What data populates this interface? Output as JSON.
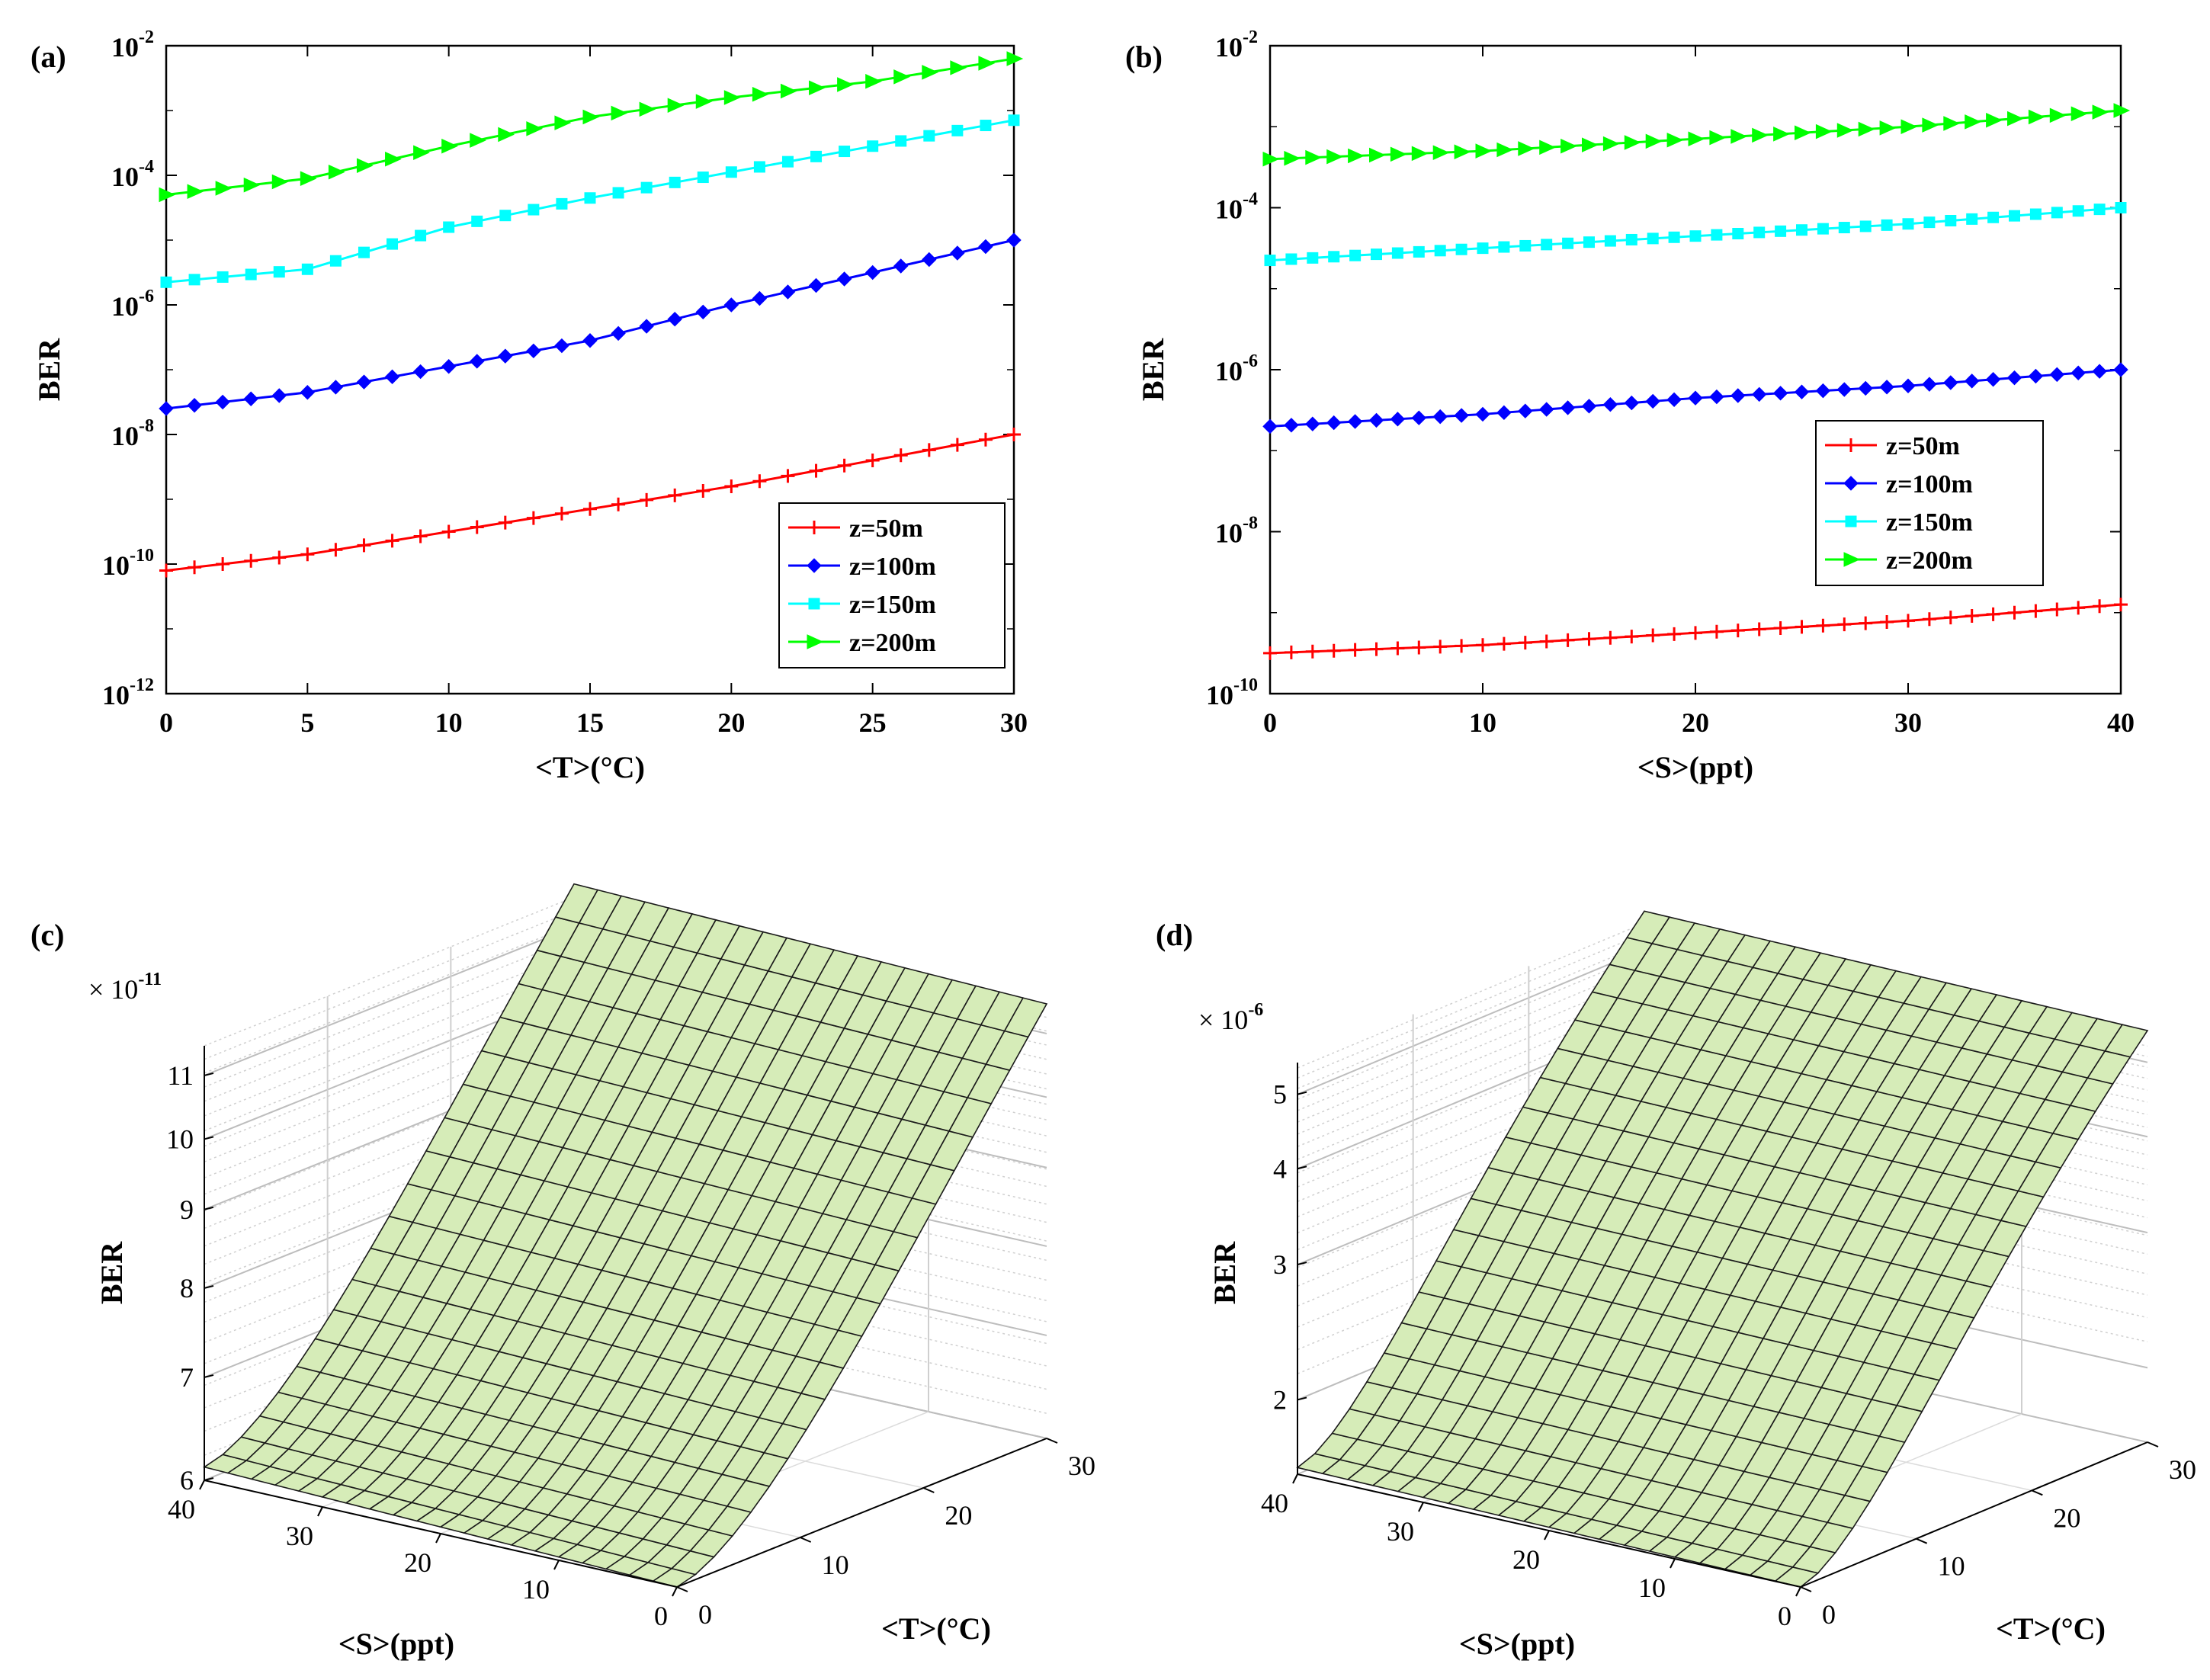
{
  "colors": {
    "z50": "#ff0000",
    "z100": "#0000ff",
    "z150": "#00ffff",
    "z200": "#00ff00",
    "surface": "#d6ecb8",
    "mesh": "#1a1a1a",
    "grid": "#d0d0d0"
  },
  "chart_data": [
    {
      "panel": "(a)",
      "type": "line",
      "yscale": "log",
      "xlabel": "<T>(°C)",
      "ylabel": "BER",
      "xlim": [
        0,
        30
      ],
      "ylim": [
        1e-12,
        0.01
      ],
      "xticks": [
        "0",
        "5",
        "10",
        "15",
        "20",
        "25",
        "30"
      ],
      "yticks": [
        {
          "base": "10",
          "exp": "-2"
        },
        {
          "base": "10",
          "exp": "-4"
        },
        {
          "base": "10",
          "exp": "-6"
        },
        {
          "base": "10",
          "exp": "-8"
        },
        {
          "base": "10",
          "exp": "-10"
        },
        {
          "base": "10",
          "exp": "-12"
        }
      ],
      "legend_position": "bottom-right",
      "x": [
        0,
        5,
        10,
        15,
        20,
        25,
        30
      ],
      "series": [
        {
          "name": "z=50m",
          "key": "z50",
          "marker": "plus",
          "log10_values": [
            -10.1,
            -9.85,
            -9.5,
            -9.15,
            -8.8,
            -8.4,
            -8.0
          ]
        },
        {
          "name": "z=100m",
          "key": "z100",
          "marker": "diamond",
          "log10_values": [
            -7.6,
            -7.35,
            -6.95,
            -6.55,
            -6.0,
            -5.5,
            -5.0
          ]
        },
        {
          "name": "z=150m",
          "key": "z150",
          "marker": "square",
          "log10_values": [
            -5.65,
            -5.45,
            -4.8,
            -4.35,
            -3.95,
            -3.55,
            -3.15
          ]
        },
        {
          "name": "z=200m",
          "key": "z200",
          "marker": "triangle-right",
          "log10_values": [
            -4.3,
            -4.05,
            -3.55,
            -3.1,
            -2.8,
            -2.55,
            -2.2
          ]
        }
      ]
    },
    {
      "panel": "(b)",
      "type": "line",
      "yscale": "log",
      "xlabel": "<S>(ppt)",
      "ylabel": "BER",
      "xlim": [
        0,
        40
      ],
      "ylim": [
        1e-10,
        0.01
      ],
      "xticks": [
        "0",
        "10",
        "20",
        "30",
        "40"
      ],
      "yticks": [
        {
          "base": "10",
          "exp": "-2"
        },
        {
          "base": "10",
          "exp": "-4"
        },
        {
          "base": "10",
          "exp": "-6"
        },
        {
          "base": "10",
          "exp": "-8"
        },
        {
          "base": "10",
          "exp": "-10"
        }
      ],
      "legend_position": "center-right",
      "x": [
        0,
        10,
        20,
        30,
        40
      ],
      "series": [
        {
          "name": "z=50m",
          "key": "z50",
          "marker": "plus",
          "log10_values": [
            -9.5,
            -9.4,
            -9.25,
            -9.1,
            -8.9
          ]
        },
        {
          "name": "z=100m",
          "key": "z100",
          "marker": "diamond",
          "log10_values": [
            -6.7,
            -6.55,
            -6.35,
            -6.2,
            -6.0
          ]
        },
        {
          "name": "z=150m",
          "key": "z150",
          "marker": "square",
          "log10_values": [
            -4.65,
            -4.5,
            -4.35,
            -4.2,
            -4.0
          ]
        },
        {
          "name": "z=200m",
          "key": "z200",
          "marker": "triangle-right",
          "log10_values": [
            -3.4,
            -3.3,
            -3.15,
            -3.0,
            -2.8
          ]
        }
      ]
    },
    {
      "panel": "(c)",
      "type": "surface",
      "zscale": "log",
      "multiplier": {
        "base": "× 10",
        "exp": "-11"
      },
      "zlabel": "BER",
      "xlabel": "<T>(°C)",
      "ylabel": "<S>(ppt)",
      "zticks": [
        "11",
        "10",
        "9",
        "8",
        "7",
        "6"
      ],
      "sticks": [
        "40",
        "30",
        "20",
        "10",
        "0"
      ],
      "tticks": [
        "0",
        "10",
        "20",
        "30"
      ],
      "zlim": [
        6,
        11.5
      ],
      "T_range": [
        0,
        30
      ],
      "S_range": [
        0,
        40
      ],
      "ber_at_T0_S0": 6.0,
      "ber_at_T30_S0": 11.5
    },
    {
      "panel": "(d)",
      "type": "surface",
      "zscale": "log",
      "multiplier": {
        "base": "× 10",
        "exp": "-6"
      },
      "zlabel": "BER",
      "xlabel": "<T>(°C)",
      "ylabel": "<S>(ppt)",
      "zticks": [
        "5",
        "4",
        "3",
        "2"
      ],
      "sticks": [
        "40",
        "30",
        "20",
        "10",
        "0"
      ],
      "tticks": [
        "0",
        "10",
        "20",
        "30"
      ],
      "zlim": [
        1.6,
        5.5
      ],
      "T_range": [
        0,
        30
      ],
      "S_range": [
        0,
        40
      ],
      "ber_at_T0_S0": 1.6,
      "ber_at_T30_S0": 5.5
    }
  ]
}
